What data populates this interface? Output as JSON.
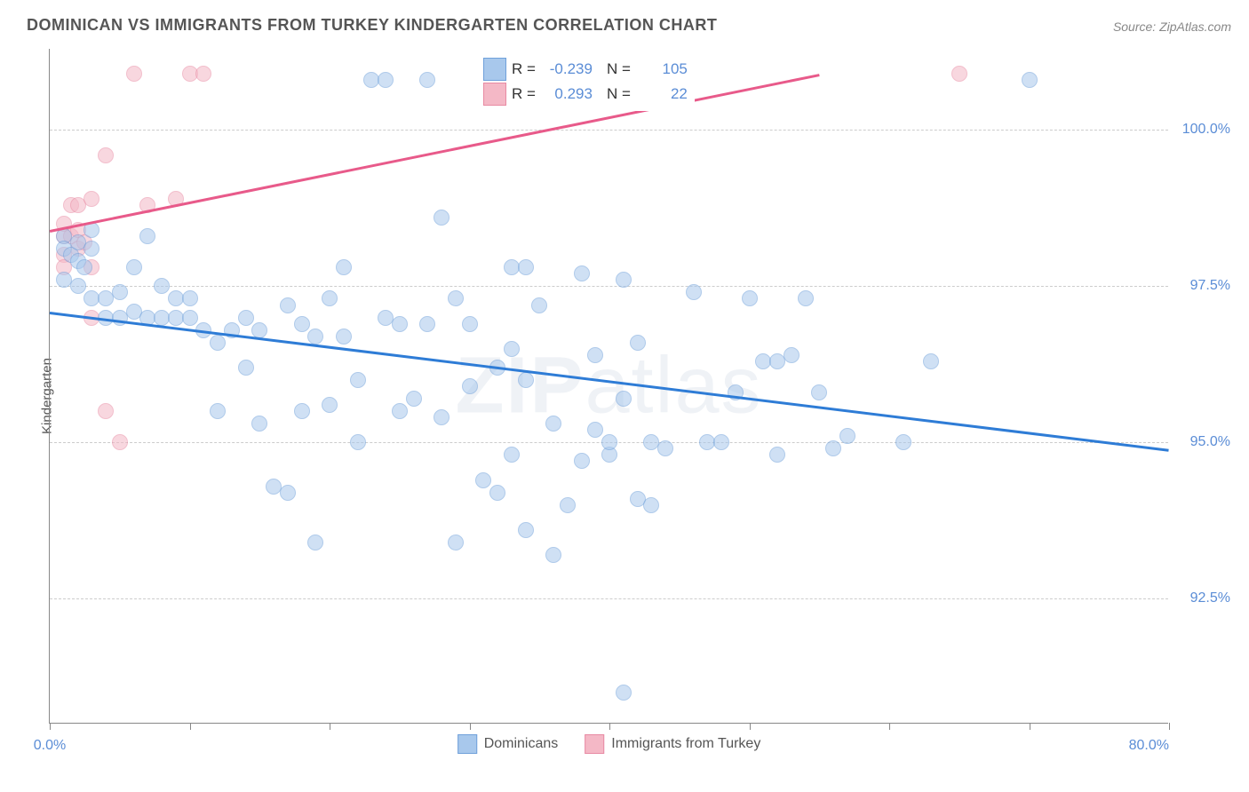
{
  "title": "DOMINICAN VS IMMIGRANTS FROM TURKEY KINDERGARTEN CORRELATION CHART",
  "source": "Source: ZipAtlas.com",
  "y_axis_label": "Kindergarten",
  "watermark_a": "ZIP",
  "watermark_b": "atlas",
  "chart": {
    "type": "scatter",
    "xlim": [
      0,
      80
    ],
    "ylim": [
      90.5,
      101.3
    ],
    "y_ticks": [
      92.5,
      95.0,
      97.5,
      100.0
    ],
    "y_tick_labels": [
      "92.5%",
      "95.0%",
      "97.5%",
      "100.0%"
    ],
    "x_ticks": [
      0,
      10,
      20,
      30,
      40,
      50,
      60,
      70,
      80
    ],
    "x_tick_labels_shown": {
      "0": "0.0%",
      "80": "80.0%"
    },
    "background_color": "#ffffff",
    "grid_color": "#cccccc",
    "marker_size": 18,
    "marker_opacity": 0.55
  },
  "series": {
    "dominicans": {
      "label": "Dominicans",
      "color_fill": "#a8c8ec",
      "color_stroke": "#6fa0da",
      "trend_color": "#2e7cd6",
      "trend": {
        "x0": 0,
        "y0": 97.1,
        "x1": 80,
        "y1": 94.9
      },
      "R": "-0.239",
      "N": "105",
      "points": [
        [
          1,
          98.3
        ],
        [
          1,
          98.1
        ],
        [
          1.5,
          98.0
        ],
        [
          2,
          98.2
        ],
        [
          2,
          97.9
        ],
        [
          2.5,
          97.8
        ],
        [
          3,
          98.1
        ],
        [
          3,
          98.4
        ],
        [
          1,
          97.6
        ],
        [
          2,
          97.5
        ],
        [
          3,
          97.3
        ],
        [
          4,
          97.3
        ],
        [
          4,
          97.0
        ],
        [
          5,
          97.0
        ],
        [
          5,
          97.4
        ],
        [
          6,
          97.1
        ],
        [
          6,
          97.8
        ],
        [
          7,
          97.0
        ],
        [
          7,
          98.3
        ],
        [
          8,
          97.0
        ],
        [
          8,
          97.5
        ],
        [
          9,
          97.0
        ],
        [
          9,
          97.3
        ],
        [
          10,
          97.0
        ],
        [
          10,
          97.3
        ],
        [
          11,
          96.8
        ],
        [
          12,
          96.6
        ],
        [
          12,
          95.5
        ],
        [
          13,
          96.8
        ],
        [
          14,
          97.0
        ],
        [
          14,
          96.2
        ],
        [
          15,
          95.3
        ],
        [
          15,
          96.8
        ],
        [
          16,
          94.3
        ],
        [
          17,
          94.2
        ],
        [
          17,
          97.2
        ],
        [
          18,
          96.9
        ],
        [
          18,
          95.5
        ],
        [
          19,
          93.4
        ],
        [
          19,
          96.7
        ],
        [
          20,
          97.3
        ],
        [
          20,
          95.6
        ],
        [
          21,
          97.8
        ],
        [
          21,
          96.7
        ],
        [
          22,
          95.0
        ],
        [
          22,
          96.0
        ],
        [
          23,
          100.8
        ],
        [
          24,
          100.8
        ],
        [
          24,
          97.0
        ],
        [
          25,
          96.9
        ],
        [
          25,
          95.5
        ],
        [
          26,
          95.7
        ],
        [
          27,
          96.9
        ],
        [
          27,
          100.8
        ],
        [
          28,
          98.6
        ],
        [
          28,
          95.4
        ],
        [
          29,
          97.3
        ],
        [
          29,
          93.4
        ],
        [
          30,
          95.9
        ],
        [
          30,
          96.9
        ],
        [
          31,
          94.4
        ],
        [
          32,
          96.2
        ],
        [
          32,
          94.2
        ],
        [
          33,
          94.8
        ],
        [
          33,
          96.5
        ],
        [
          34,
          93.6
        ],
        [
          34,
          96.0
        ],
        [
          35,
          100.8
        ],
        [
          35,
          97.2
        ],
        [
          36,
          95.3
        ],
        [
          36,
          93.2
        ],
        [
          37,
          94.0
        ],
        [
          38,
          97.7
        ],
        [
          38,
          94.7
        ],
        [
          39,
          95.2
        ],
        [
          39,
          96.4
        ],
        [
          40,
          94.8
        ],
        [
          40,
          95.0
        ],
        [
          41,
          95.7
        ],
        [
          41,
          91.0
        ],
        [
          42,
          94.1
        ],
        [
          42,
          96.6
        ],
        [
          43,
          94.0
        ],
        [
          43,
          95.0
        ],
        [
          44,
          94.9
        ],
        [
          45,
          100.8
        ],
        [
          46,
          97.4
        ],
        [
          47,
          95.0
        ],
        [
          48,
          95.0
        ],
        [
          49,
          95.8
        ],
        [
          50,
          97.3
        ],
        [
          51,
          96.3
        ],
        [
          52,
          94.8
        ],
        [
          52,
          96.3
        ],
        [
          53,
          96.4
        ],
        [
          54,
          97.3
        ],
        [
          55,
          95.8
        ],
        [
          56,
          94.9
        ],
        [
          57,
          95.1
        ],
        [
          61,
          95.0
        ],
        [
          63,
          96.3
        ],
        [
          70,
          100.8
        ],
        [
          41,
          97.6
        ],
        [
          33,
          97.8
        ],
        [
          34,
          97.8
        ]
      ]
    },
    "turkey": {
      "label": "Immigrants from Turkey",
      "color_fill": "#f4b8c6",
      "color_stroke": "#e88aa3",
      "trend_color": "#e85a8a",
      "trend": {
        "x0": 0,
        "y0": 98.4,
        "x1": 55,
        "y1": 100.9
      },
      "R": "0.293",
      "N": "22",
      "points": [
        [
          1,
          98.3
        ],
        [
          1,
          98.0
        ],
        [
          1,
          97.8
        ],
        [
          1,
          98.5
        ],
        [
          1.5,
          98.3
        ],
        [
          1.5,
          98.8
        ],
        [
          2,
          98.1
        ],
        [
          2,
          98.4
        ],
        [
          2,
          98.8
        ],
        [
          2.5,
          98.2
        ],
        [
          3,
          98.9
        ],
        [
          3,
          97.8
        ],
        [
          3,
          97.0
        ],
        [
          4,
          99.6
        ],
        [
          4,
          95.5
        ],
        [
          5,
          95.0
        ],
        [
          6,
          100.9
        ],
        [
          7,
          98.8
        ],
        [
          9,
          98.9
        ],
        [
          10,
          100.9
        ],
        [
          11,
          100.9
        ],
        [
          65,
          100.9
        ]
      ]
    }
  },
  "legend": {
    "r_label": "R =",
    "n_label": "N ="
  }
}
